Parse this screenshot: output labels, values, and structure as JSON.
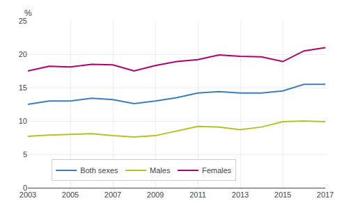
{
  "chart_data": {
    "type": "line",
    "x": [
      2003,
      2004,
      2005,
      2006,
      2007,
      2008,
      2009,
      2010,
      2011,
      2012,
      2013,
      2014,
      2015,
      2016,
      2017
    ],
    "series": [
      {
        "name": "Both sexes",
        "color": "#3a7ebf",
        "values": [
          12.5,
          13.0,
          13.0,
          13.4,
          13.2,
          12.6,
          13.0,
          13.5,
          14.2,
          14.4,
          14.2,
          14.2,
          14.5,
          15.5,
          15.5
        ]
      },
      {
        "name": "Males",
        "color": "#b5c225",
        "values": [
          7.7,
          7.9,
          8.0,
          8.1,
          7.8,
          7.6,
          7.8,
          8.5,
          9.2,
          9.1,
          8.7,
          9.1,
          9.9,
          10.0,
          9.9
        ]
      },
      {
        "name": "Females",
        "color": "#b0006e",
        "values": [
          17.5,
          18.2,
          18.1,
          18.5,
          18.4,
          17.5,
          18.3,
          18.9,
          19.2,
          19.9,
          19.7,
          19.6,
          18.9,
          20.5,
          21.0
        ]
      }
    ],
    "xlim": [
      2003,
      2017
    ],
    "xticks": [
      2003,
      2005,
      2007,
      2009,
      2011,
      2013,
      2015,
      2017
    ],
    "ylim": [
      0,
      25
    ],
    "yticks": [
      0,
      5,
      10,
      15,
      20,
      25
    ],
    "ylabel": "%",
    "grid": true,
    "legend": "lower left"
  }
}
